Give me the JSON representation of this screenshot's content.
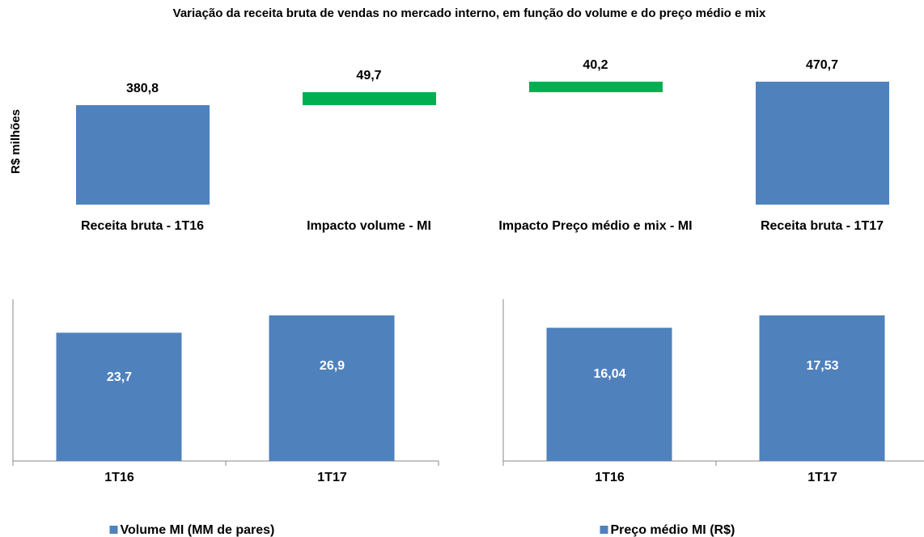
{
  "chart_data": [
    {
      "type": "waterfall",
      "title": "Variação da receita bruta de vendas no mercado interno, em função do volume e do preço médio e mix",
      "y_label": "R$ milhões",
      "categories": [
        "Receita bruta - 1T16",
        "Impacto volume - MI",
        "Impacto Preço médio e mix - MI",
        "Receita bruta - 1T17"
      ],
      "values": [
        380.8,
        49.7,
        40.2,
        470.7
      ],
      "value_labels": [
        "380,8",
        "49,7",
        "40,2",
        "470,7"
      ],
      "color": "#4f81bd",
      "increase_color": "#00b050"
    },
    {
      "type": "bar",
      "categories": [
        "1T16",
        "1T17"
      ],
      "series": [
        {
          "name": "Volume MI (MM de pares)",
          "color": "#4f81bd",
          "values": [
            23.7,
            26.9
          ],
          "value_labels": [
            "23,7",
            "26,9"
          ]
        }
      ]
    },
    {
      "type": "bar",
      "categories": [
        "1T16",
        "1T17"
      ],
      "series": [
        {
          "name": "Preço médio MI (R$)",
          "color": "#4f81bd",
          "values": [
            16.04,
            17.53
          ],
          "value_labels": [
            "16,04",
            "17,53"
          ]
        }
      ]
    }
  ]
}
